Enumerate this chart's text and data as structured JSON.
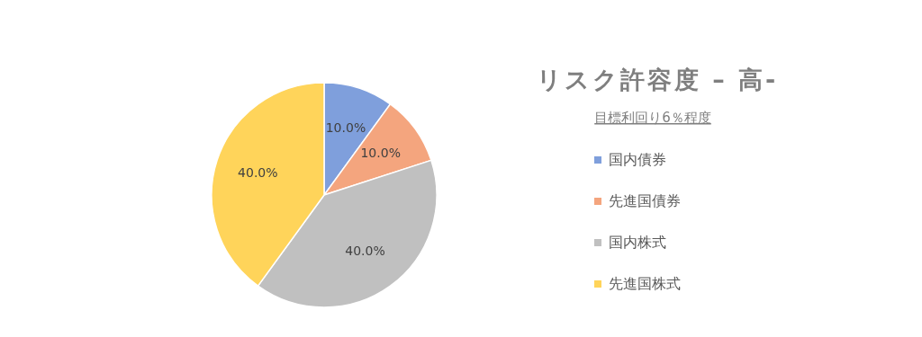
{
  "chart_data": {
    "type": "pie",
    "title": "リスク許容度 – 高-",
    "subtitle": "目標利回り6％程度",
    "categories": [
      "国内債券",
      "先進国債券",
      "国内株式",
      "先進国株式"
    ],
    "values": [
      10,
      10,
      40,
      40
    ],
    "value_labels": [
      "10.0%",
      "10.0%",
      "40.0%",
      "40.0%"
    ],
    "colors": [
      "#7f9fdc",
      "#f4a57e",
      "#c0c0c0",
      "#ffd45a"
    ],
    "legend": "right"
  }
}
